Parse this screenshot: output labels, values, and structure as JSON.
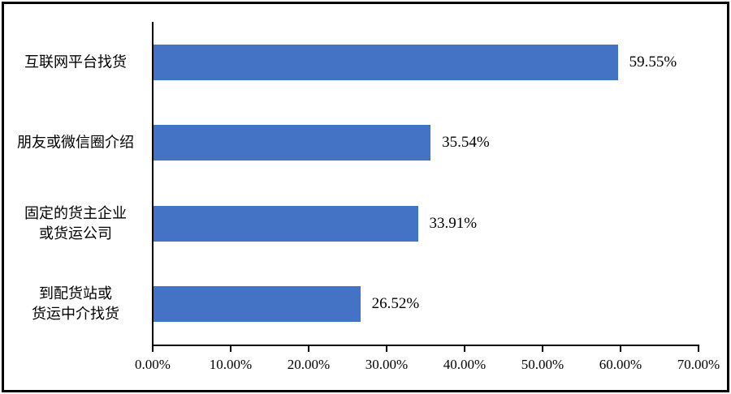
{
  "chart_data": {
    "type": "bar",
    "orientation": "horizontal",
    "title": "",
    "xlabel": "",
    "ylabel": "",
    "categories": [
      "互联网平台找货",
      "朋友或微信圈介绍",
      "固定的货主企业\n或货运公司",
      "到配货站或\n货运中介找货"
    ],
    "values": [
      59.55,
      35.54,
      33.91,
      26.52
    ],
    "data_labels": [
      "59.55%",
      "35.54%",
      "33.91%",
      "26.52%"
    ],
    "x_ticks": [
      "0.00%",
      "10.00%",
      "20.00%",
      "30.00%",
      "40.00%",
      "50.00%",
      "60.00%",
      "70.00%"
    ],
    "x_tick_values": [
      0,
      10,
      20,
      30,
      40,
      50,
      60,
      70
    ],
    "xlim": [
      0,
      70
    ],
    "grid": false,
    "legend": null,
    "bar_color": "#4472C4",
    "axis_color": "#000000",
    "text_color": "#000000",
    "background_color": "#ffffff"
  }
}
